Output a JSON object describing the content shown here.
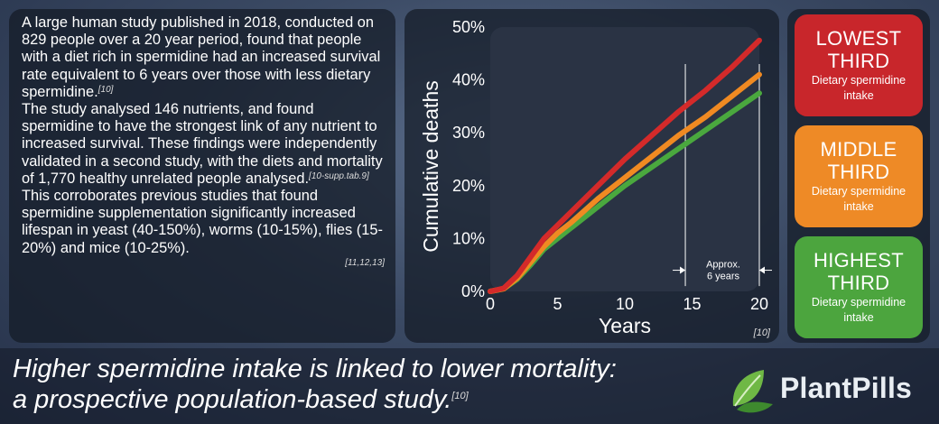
{
  "paragraphs": {
    "p1": "A large human study published in 2018, conducted on 829 people over a 20 year period, found that people with a diet rich in spermidine had an increased survival rate equivalent to 6 years over those with less dietary spermidine.",
    "p1_ref": "[10]",
    "p2": "The study analysed 146 nutrients, and found spermidine to have the strongest link of any nutrient to increased survival. These findings were independently validated in a second study, with the diets and mortality of 1,770 healthy unrelated people analysed.",
    "p2_ref": "[10-supp.tab.9]",
    "p3": "This corroborates previous studies that found spermidine supplementation significantly increased lifespan in yeast (40-150%), worms (10-15%), flies (15-20%) and mice (10-25%).",
    "p3_ref": "[11,12,13]"
  },
  "chart_data": {
    "type": "line",
    "xlabel": "Years",
    "ylabel": "Cumulative deaths",
    "xlim": [
      0,
      20
    ],
    "ylim": [
      0,
      50
    ],
    "x_ticks": [
      "0",
      "5",
      "10",
      "15",
      "20"
    ],
    "y_ticks": [
      "0%",
      "10%",
      "20%",
      "30%",
      "40%",
      "50%"
    ],
    "x_tick_values": [
      0,
      5,
      10,
      15,
      20
    ],
    "y_tick_values": [
      0,
      10,
      20,
      30,
      40,
      50
    ],
    "x": [
      0,
      1,
      2,
      3,
      4,
      5,
      6,
      8,
      10,
      12,
      14,
      16,
      18,
      20
    ],
    "series": [
      {
        "color": "#d42a2a",
        "values": [
          0,
          0.6,
          3,
          6.5,
          10,
          12.5,
          15,
          20,
          25,
          29.5,
          34,
          38,
          42.5,
          47.5
        ]
      },
      {
        "color": "#f08a22",
        "values": [
          0,
          0.5,
          2.5,
          5.5,
          8.5,
          11,
          13,
          17.5,
          21.5,
          25.5,
          29.5,
          33,
          37,
          41
        ]
      },
      {
        "color": "#4aa83e",
        "values": [
          0,
          0.5,
          2.3,
          5,
          8,
          10,
          12,
          16,
          20,
          23.5,
          27,
          30.5,
          34,
          37.5
        ]
      }
    ],
    "annotation": {
      "line1": "Approx.",
      "line2": "6 years",
      "x_from": 14.5,
      "x_to": 20,
      "y": 4
    },
    "ref": "[10]",
    "grid": false,
    "background": "#2a3344"
  },
  "legend": [
    {
      "title1": "LOWEST",
      "title2": "THIRD",
      "sub1": "Dietary spermidine",
      "sub2": "intake",
      "color": "#c8262b"
    },
    {
      "title1": "MIDDLE",
      "title2": "THIRD",
      "sub1": "Dietary spermidine",
      "sub2": "intake",
      "color": "#ee8a26"
    },
    {
      "title1": "HIGHEST",
      "title2": "THIRD",
      "sub1": "Dietary spermidine",
      "sub2": "intake",
      "color": "#4ca53e"
    }
  ],
  "footer": {
    "title_line1": "Higher spermidine intake is linked to lower mortality:",
    "title_line2": "a prospective population-based study.",
    "title_ref": "[10]",
    "brand": "PlantPills"
  }
}
